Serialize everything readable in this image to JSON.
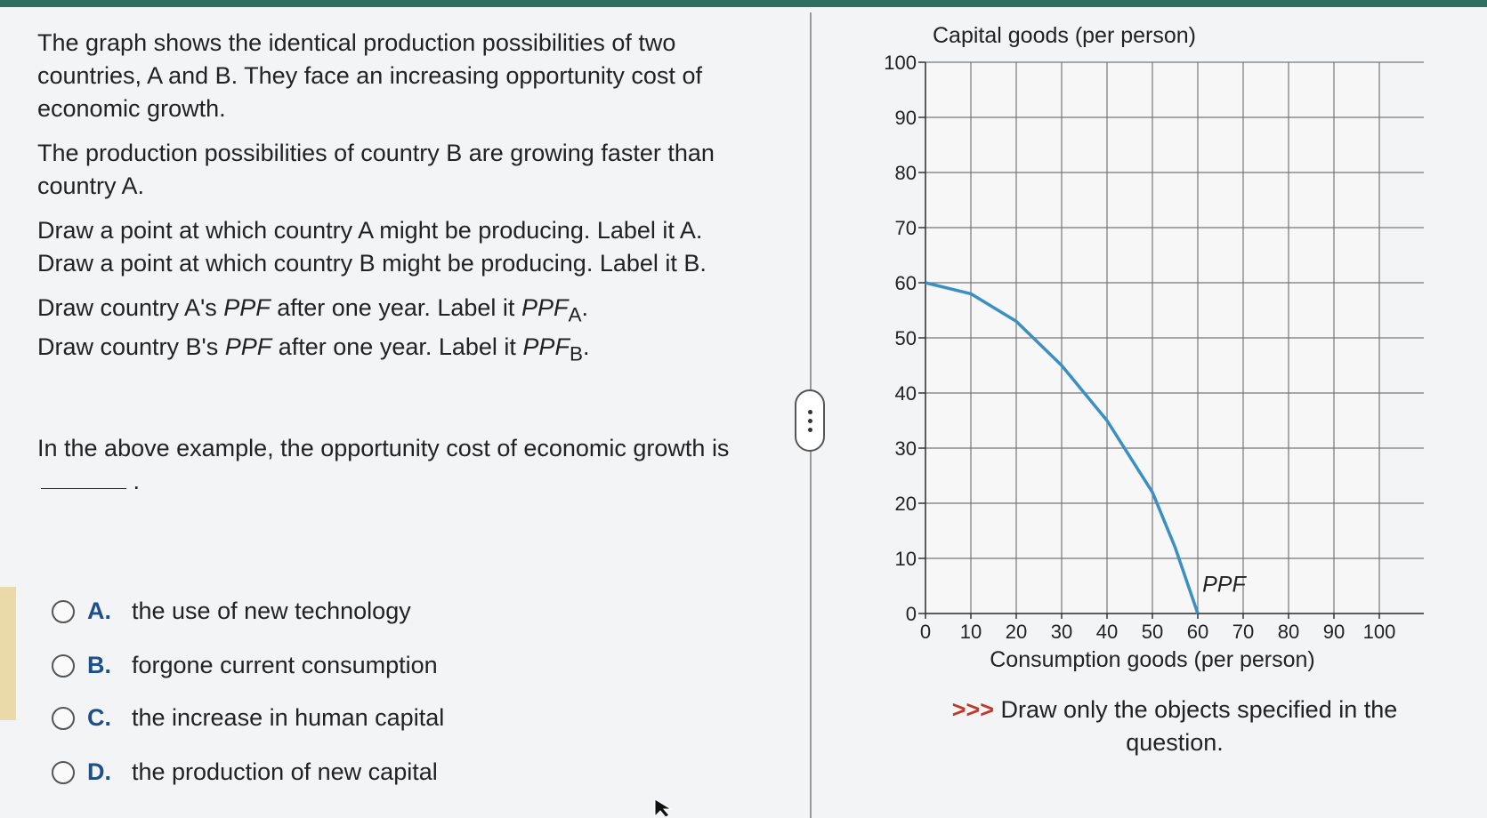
{
  "question": {
    "p1": "The graph shows the identical production possibilities of two countries, A and B. They face an increasing opportunity cost of economic growth.",
    "p2": "The production possibilities of country B are growing faster than country A.",
    "p3a": "Draw a point at which country A might be producing. Label it A.",
    "p3b": "Draw a point at which country B might be producing. Label it B.",
    "p4a_pre": "Draw country A's ",
    "p4a_ppf": "PPF",
    "p4a_mid": " after one year. Label it ",
    "p4a_lab": "PPF",
    "p4a_sub": "A",
    "p4b_pre": "Draw country B's ",
    "p4b_ppf": "PPF",
    "p4b_mid": " after one year. Label it ",
    "p4b_lab": "PPF",
    "p4b_sub": "B",
    "p5": "In the above example, the opportunity cost of economic growth is"
  },
  "options": [
    {
      "letter": "A.",
      "text": "the use of new technology"
    },
    {
      "letter": "B.",
      "text": "forgone current consumption"
    },
    {
      "letter": "C.",
      "text": "the increase in human capital"
    },
    {
      "letter": "D.",
      "text": "the production of new capital"
    }
  ],
  "instruction": {
    "arrows": ">>>",
    "text": " Draw only the objects specified in the question."
  },
  "chart_data": {
    "type": "line",
    "ylabel": "Capital goods (per person)",
    "xlabel": "Consumption goods (per person)",
    "xlim": [
      0,
      100
    ],
    "ylim": [
      0,
      100
    ],
    "x_ticks": [
      "0",
      "10",
      "20",
      "30",
      "40",
      "50",
      "60",
      "70",
      "80",
      "90",
      "100"
    ],
    "y_ticks": [
      "0",
      "10",
      "20",
      "30",
      "40",
      "50",
      "60",
      "70",
      "80",
      "90",
      "100"
    ],
    "grid": true,
    "series": [
      {
        "name": "PPF",
        "color": "#3a8fc4",
        "x": [
          0,
          10,
          20,
          30,
          40,
          50,
          55,
          60
        ],
        "y": [
          60,
          58,
          53,
          45,
          35,
          22,
          12,
          0
        ]
      }
    ],
    "annotations": [
      {
        "text": "PPF",
        "x": 61,
        "y": 3
      }
    ]
  }
}
